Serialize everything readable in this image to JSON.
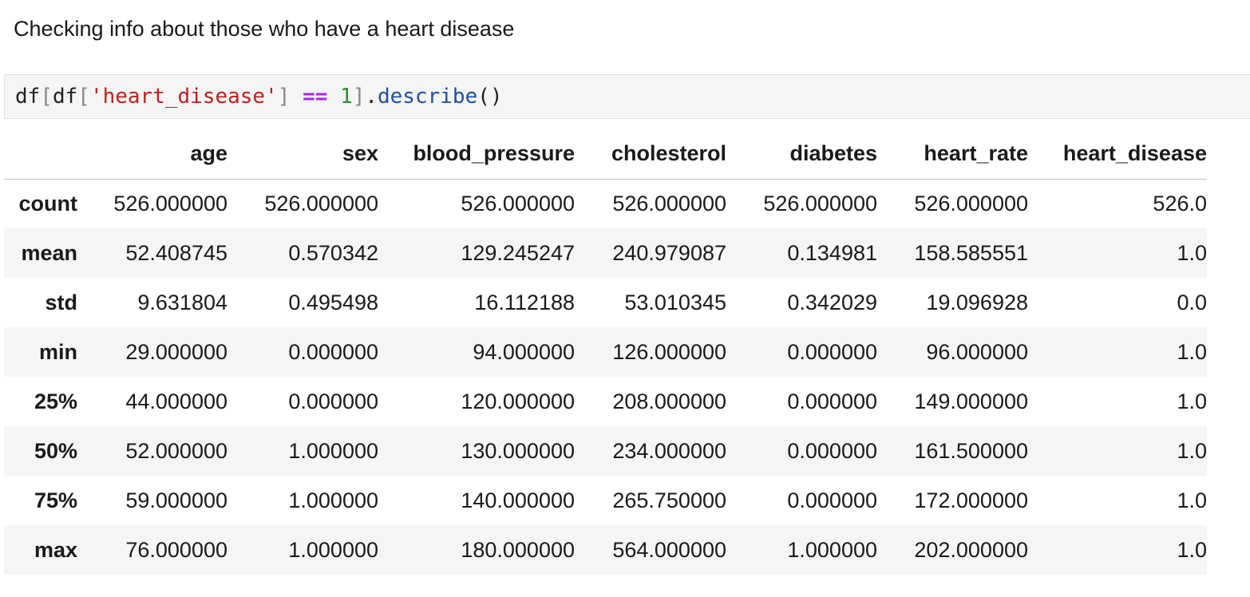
{
  "markdown": {
    "text": "Checking info about those who have a heart disease"
  },
  "code": {
    "tokens": [
      "df",
      "[",
      "df",
      "[",
      "'heart_disease'",
      "]",
      " ",
      "==",
      " ",
      "1",
      "]",
      ".",
      "describe",
      "()"
    ]
  },
  "table": {
    "columns": [
      "age",
      "sex",
      "blood_pressure",
      "cholesterol",
      "diabetes",
      "heart_rate",
      "heart_disease"
    ],
    "rows": [
      {
        "label": "count",
        "values": [
          "526.000000",
          "526.000000",
          "526.000000",
          "526.000000",
          "526.000000",
          "526.000000",
          "526.0"
        ]
      },
      {
        "label": "mean",
        "values": [
          "52.408745",
          "0.570342",
          "129.245247",
          "240.979087",
          "0.134981",
          "158.585551",
          "1.0"
        ]
      },
      {
        "label": "std",
        "values": [
          "9.631804",
          "0.495498",
          "16.112188",
          "53.010345",
          "0.342029",
          "19.096928",
          "0.0"
        ]
      },
      {
        "label": "min",
        "values": [
          "29.000000",
          "0.000000",
          "94.000000",
          "126.000000",
          "0.000000",
          "96.000000",
          "1.0"
        ]
      },
      {
        "label": "25%",
        "values": [
          "44.000000",
          "0.000000",
          "120.000000",
          "208.000000",
          "0.000000",
          "149.000000",
          "1.0"
        ]
      },
      {
        "label": "50%",
        "values": [
          "52.000000",
          "1.000000",
          "130.000000",
          "234.000000",
          "0.000000",
          "161.500000",
          "1.0"
        ]
      },
      {
        "label": "75%",
        "values": [
          "59.000000",
          "1.000000",
          "140.000000",
          "265.750000",
          "0.000000",
          "172.000000",
          "1.0"
        ]
      },
      {
        "label": "max",
        "values": [
          "76.000000",
          "1.000000",
          "180.000000",
          "564.000000",
          "1.000000",
          "202.000000",
          "1.0"
        ]
      }
    ]
  }
}
